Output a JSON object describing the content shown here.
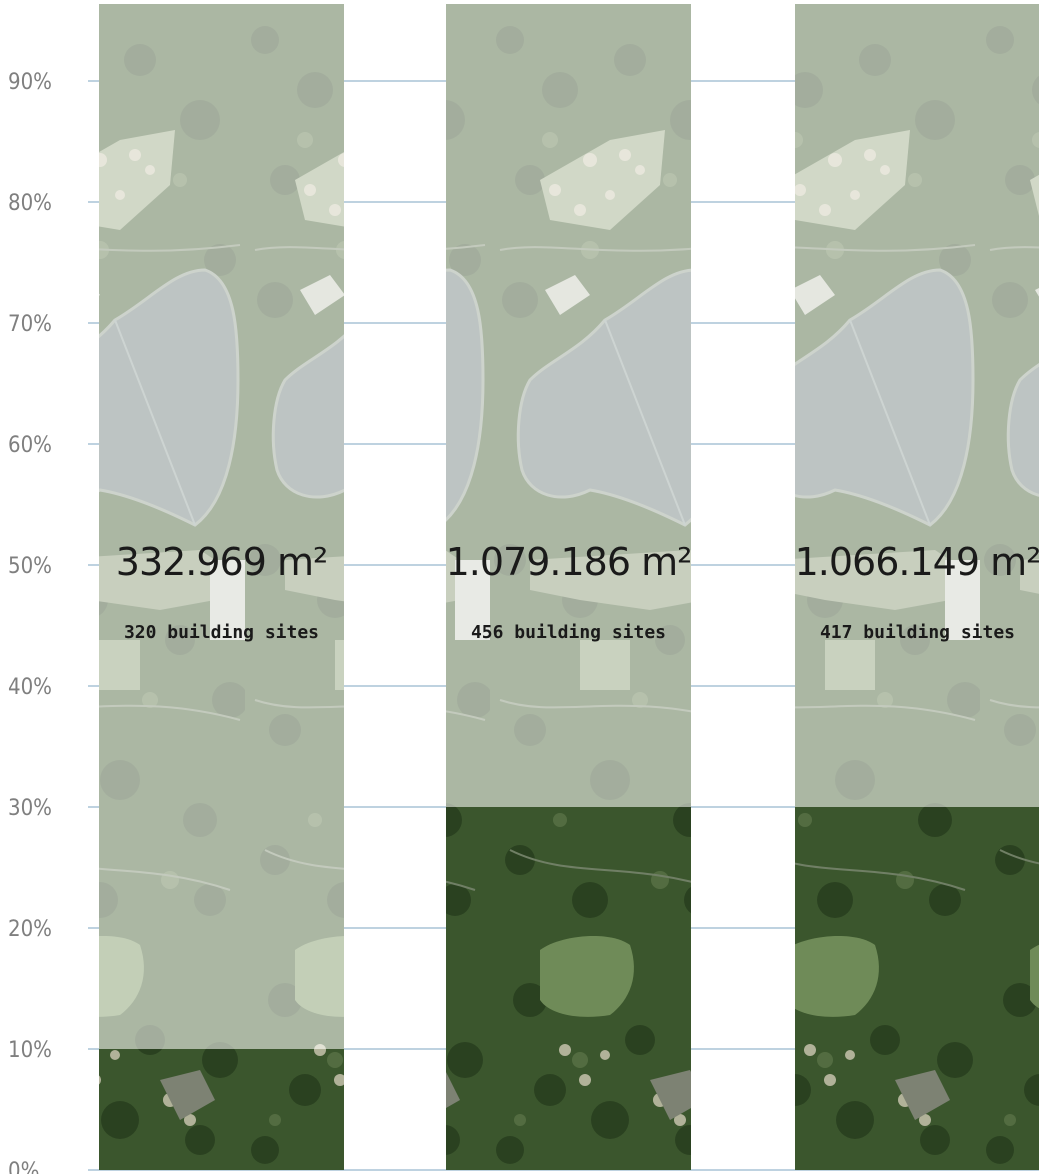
{
  "chart_data": {
    "type": "bar",
    "ylim": [
      0,
      95
    ],
    "y_ticks": [
      "0%",
      "10%",
      "20%",
      "30%",
      "40%",
      "50%",
      "60%",
      "70%",
      "80%",
      "90%"
    ],
    "grid": true,
    "colors": {
      "gridline": "#a9c4d6",
      "faded_overlay": "#eef0ea",
      "dark_forest": "#2f4a23",
      "water": "#8f9aa0"
    },
    "series": [
      {
        "values": [
          10,
          30,
          30
        ]
      }
    ],
    "columns": [
      {
        "area": "332.969 m²",
        "sites": "320 building sites",
        "value": 10
      },
      {
        "area": "1.079.186 m²",
        "sites": "456 building sites",
        "value": 30
      },
      {
        "area": "1.066.149 m²",
        "sites": "417 building sites",
        "value": 30
      }
    ]
  }
}
